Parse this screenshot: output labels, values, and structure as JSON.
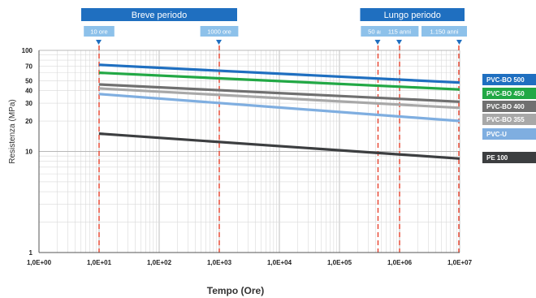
{
  "chart_data": {
    "type": "line",
    "xscale": "log",
    "yscale": "log",
    "xlabel": "Tempo (Ore)",
    "ylabel": "Resistenza (MPa)",
    "xlim": [
      1,
      10000000
    ],
    "ylim": [
      1,
      100
    ],
    "x_ticks": [
      "1,0E+00",
      "1,0E+01",
      "1,0E+02",
      "1,0E+03",
      "1,0E+04",
      "1,0E+05",
      "1,0E+06",
      "1,0E+07"
    ],
    "y_ticks": [
      {
        "value": 100,
        "label": "100"
      },
      {
        "value": 70,
        "label": "70"
      },
      {
        "value": 50,
        "label": "50"
      },
      {
        "value": 40,
        "label": "40"
      },
      {
        "value": 30,
        "label": "30"
      },
      {
        "value": 20,
        "label": "20"
      },
      {
        "value": 10,
        "label": "10"
      },
      {
        "value": 1,
        "label": "1"
      }
    ],
    "grid": true,
    "legend_position": "right",
    "periods": [
      {
        "label": "Breve periodo",
        "from": 10,
        "to": 1000
      },
      {
        "label": "Lungo periodo",
        "from": 438000,
        "to": 10000000
      }
    ],
    "markers": [
      {
        "label": "10 ore",
        "x": 10
      },
      {
        "label": "1000 ore",
        "x": 1000
      },
      {
        "label": "50 anni",
        "x": 438000
      },
      {
        "label": "115 anni",
        "x": 1000000
      },
      {
        "label": "1.150 anni",
        "x": 10000000
      }
    ],
    "series": [
      {
        "name": "PVC-BO 500",
        "color": "#1f6fc0",
        "points": [
          [
            10,
            72
          ],
          [
            10000000,
            48
          ]
        ]
      },
      {
        "name": "PVC-BO 450",
        "color": "#22a845",
        "points": [
          [
            10,
            60
          ],
          [
            10000000,
            41
          ]
        ]
      },
      {
        "name": "PVC-BO 400",
        "color": "#707070",
        "points": [
          [
            10,
            46
          ],
          [
            10000000,
            31
          ]
        ]
      },
      {
        "name": "PVC-BO 355",
        "color": "#a8a8a8",
        "points": [
          [
            10,
            42
          ],
          [
            10000000,
            27
          ]
        ]
      },
      {
        "name": "PVC-U",
        "color": "#7faee0",
        "points": [
          [
            10,
            37
          ],
          [
            10000000,
            20
          ]
        ]
      },
      {
        "name": "PE 100",
        "color": "#3c3e40",
        "points": [
          [
            10,
            15
          ],
          [
            10000000,
            8.5
          ]
        ]
      }
    ]
  }
}
